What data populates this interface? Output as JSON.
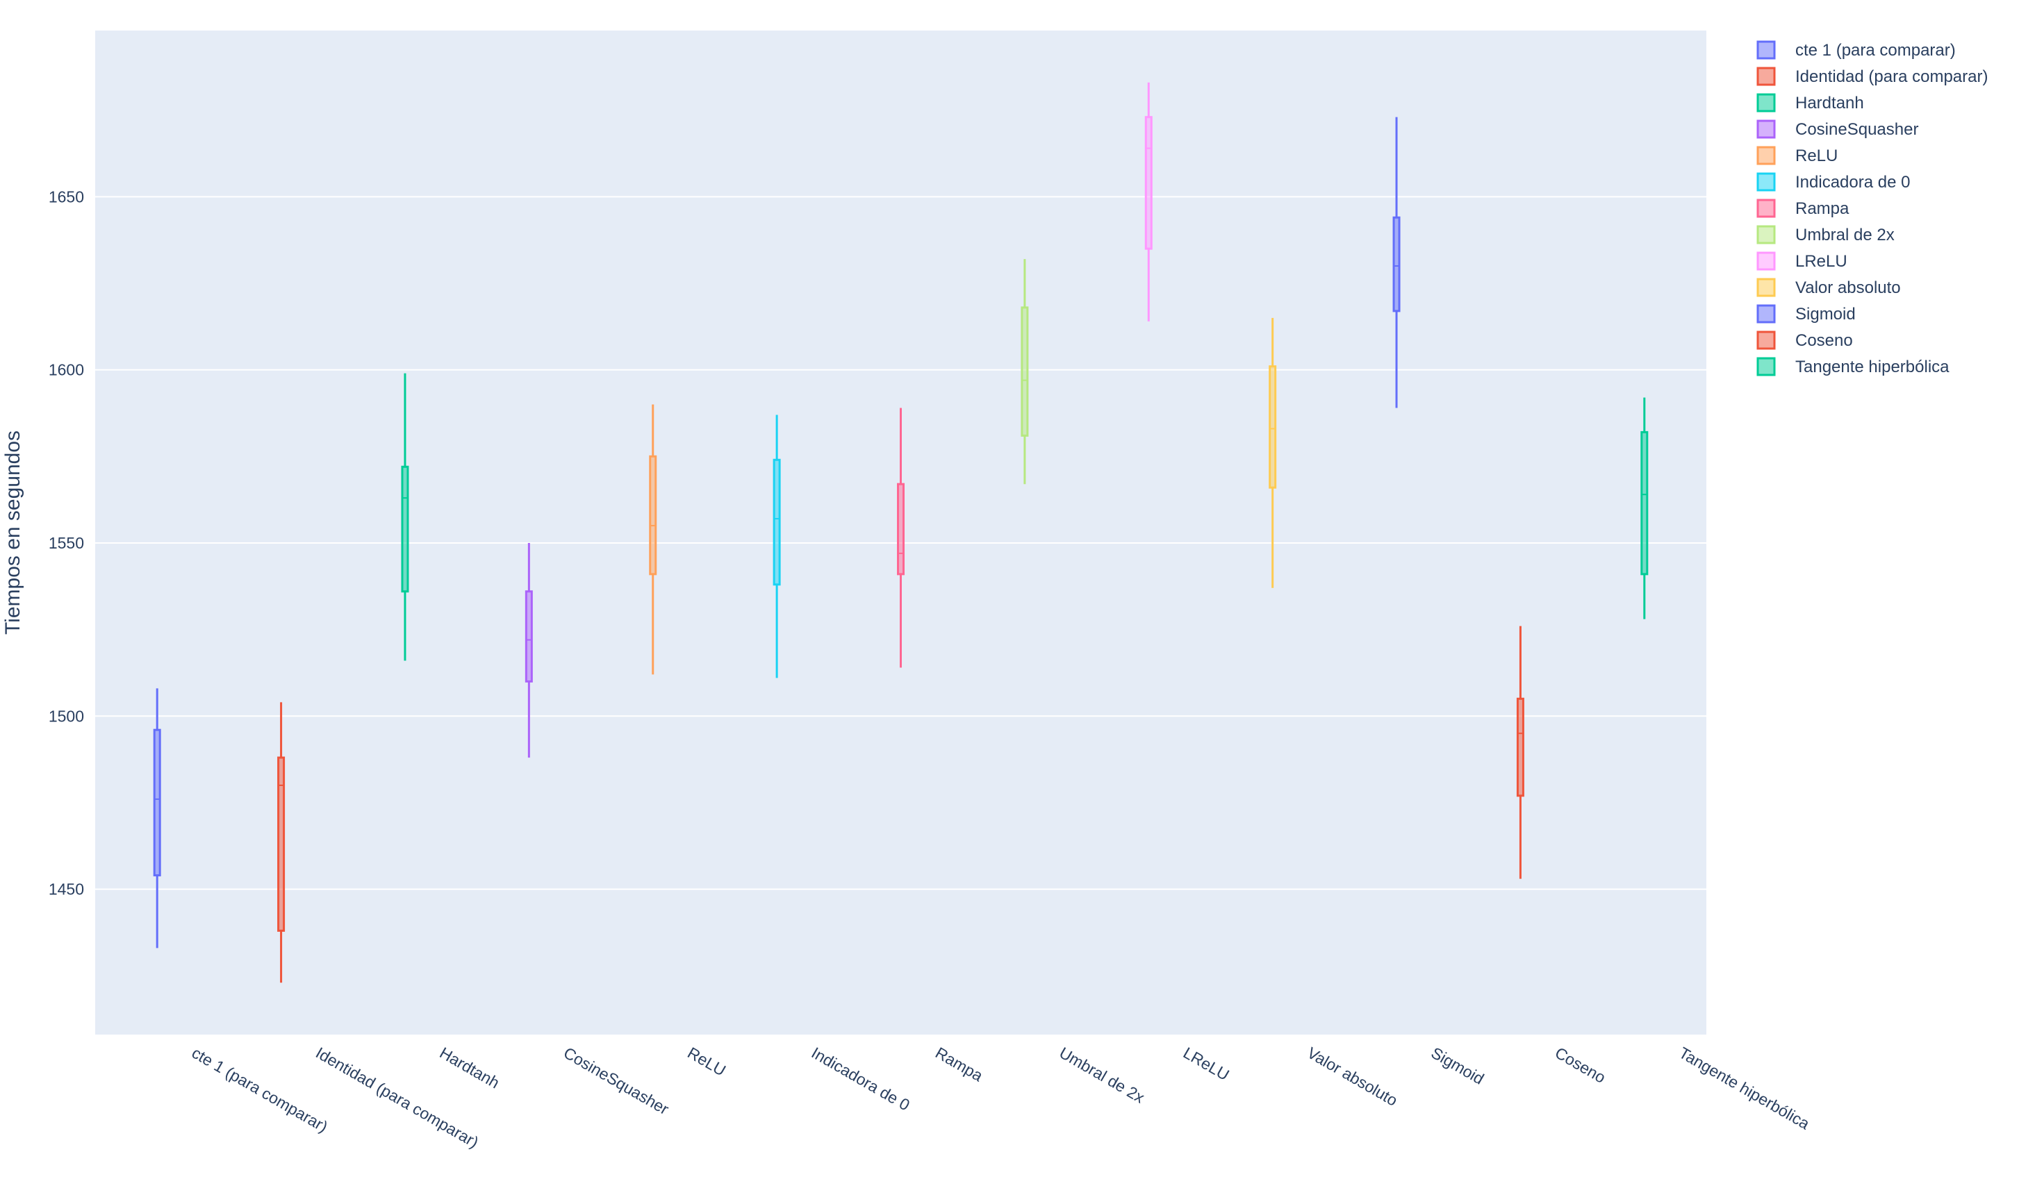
{
  "chart_data": {
    "type": "box",
    "title": "",
    "xlabel": "",
    "ylabel": "Tiempos en segundos",
    "ylim": [
      1408,
      1698
    ],
    "yticks": [
      1450,
      1500,
      1550,
      1600,
      1650
    ],
    "grid": true,
    "legend_position": "right",
    "plot_background": "#E5ECF6",
    "categories": [
      "cte 1 (para comparar)",
      "Identidad (para comparar)",
      "Hardtanh",
      "CosineSquasher",
      "ReLU",
      "Indicadora de 0",
      "Rampa",
      "Umbral de 2x",
      "LReLU",
      "Valor absoluto",
      "Sigmoid",
      "Coseno",
      "Tangente hiperbólica"
    ],
    "series": [
      {
        "name": "cte 1 (para comparar)",
        "color": "#636EFA",
        "min": 1433,
        "q1": 1454,
        "median": 1476,
        "q3": 1496,
        "max": 1508
      },
      {
        "name": "Identidad (para comparar)",
        "color": "#EF553B",
        "min": 1423,
        "q1": 1438,
        "median": 1480,
        "q3": 1488,
        "max": 1504
      },
      {
        "name": "Hardtanh",
        "color": "#00CC96",
        "min": 1516,
        "q1": 1536,
        "median": 1563,
        "q3": 1572,
        "max": 1599
      },
      {
        "name": "CosineSquasher",
        "color": "#AB63FA",
        "min": 1488,
        "q1": 1510,
        "median": 1522,
        "q3": 1536,
        "max": 1550
      },
      {
        "name": "ReLU",
        "color": "#FFA15A",
        "min": 1512,
        "q1": 1541,
        "median": 1555,
        "q3": 1575,
        "max": 1590
      },
      {
        "name": "Indicadora de 0",
        "color": "#19D3F3",
        "min": 1511,
        "q1": 1538,
        "median": 1557,
        "q3": 1574,
        "max": 1587
      },
      {
        "name": "Rampa",
        "color": "#FF6692",
        "min": 1514,
        "q1": 1541,
        "median": 1547,
        "q3": 1567,
        "max": 1589
      },
      {
        "name": "Umbral de 2x",
        "color": "#B6E880",
        "min": 1567,
        "q1": 1581,
        "median": 1597,
        "q3": 1618,
        "max": 1632
      },
      {
        "name": "LReLU",
        "color": "#FF97FF",
        "min": 1614,
        "q1": 1635,
        "median": 1664,
        "q3": 1673,
        "max": 1683
      },
      {
        "name": "Valor absoluto",
        "color": "#FECB52",
        "min": 1537,
        "q1": 1566,
        "median": 1583,
        "q3": 1601,
        "max": 1615
      },
      {
        "name": "Sigmoid",
        "color": "#636EFA",
        "min": 1589,
        "q1": 1617,
        "median": 1630,
        "q3": 1644,
        "max": 1673
      },
      {
        "name": "Coseno",
        "color": "#EF553B",
        "min": 1453,
        "q1": 1477,
        "median": 1495,
        "q3": 1505,
        "max": 1526
      },
      {
        "name": "Tangente hiperbólica",
        "color": "#00CC96",
        "min": 1528,
        "q1": 1541,
        "median": 1564,
        "q3": 1582,
        "max": 1592
      }
    ]
  }
}
